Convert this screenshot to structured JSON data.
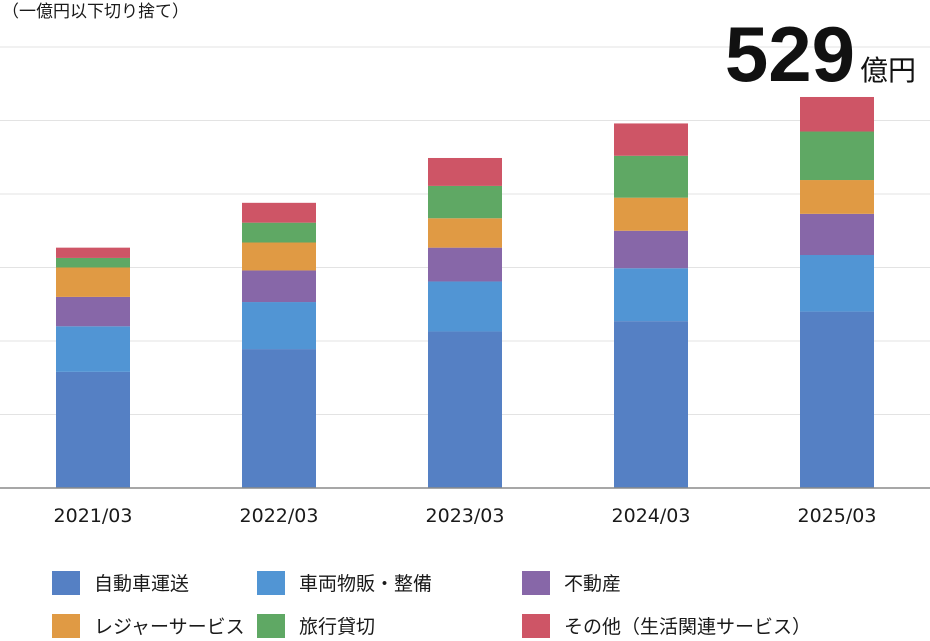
{
  "chart_data": {
    "type": "bar",
    "stacked": true,
    "unit_note": "（一億円以下切り捨て）",
    "highlight": {
      "value": "529",
      "unit": "億円"
    },
    "categories": [
      "2021/03",
      "2022/03",
      "2023/03",
      "2024/03",
      "2025/03"
    ],
    "ylim": [
      0,
      600
    ],
    "grid": true,
    "legend_position": "bottom",
    "series": [
      {
        "name": "自動車運送",
        "color": "#5580C4",
        "values": [
          158,
          189,
          213,
          227,
          240
        ]
      },
      {
        "name": "車両物販・整備",
        "color": "#5195D4",
        "values": [
          62,
          64,
          68,
          72,
          77
        ]
      },
      {
        "name": "不動産",
        "color": "#8767A8",
        "values": [
          40,
          43,
          46,
          51,
          56
        ]
      },
      {
        "name": "レジャーサービス",
        "color": "#E09A44",
        "values": [
          40,
          38,
          40,
          45,
          46
        ]
      },
      {
        "name": "旅行貸切",
        "color": "#5FA864",
        "values": [
          13,
          27,
          44,
          57,
          66
        ]
      },
      {
        "name": "その他（生活関連サービス）",
        "color": "#CE5566",
        "values": [
          14,
          27,
          38,
          44,
          47
        ]
      }
    ]
  }
}
